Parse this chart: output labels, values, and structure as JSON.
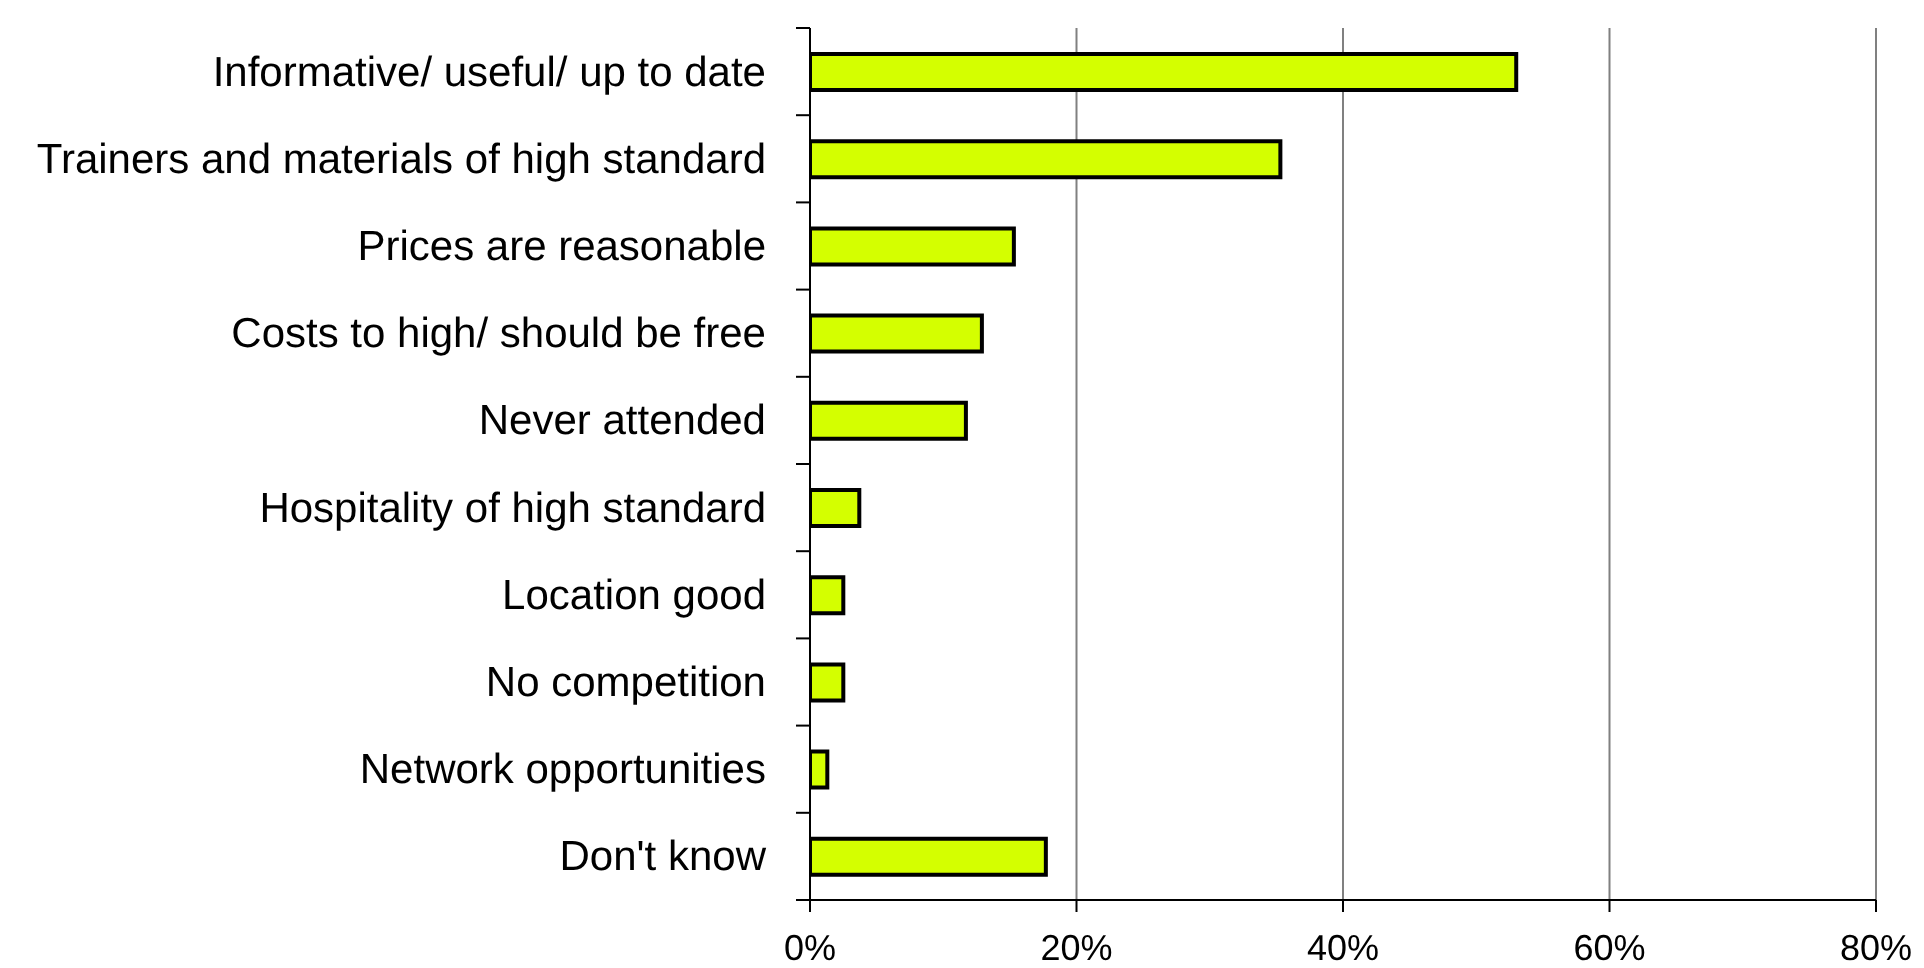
{
  "chart_data": {
    "type": "bar",
    "orientation": "horizontal",
    "categories": [
      "Informative/ useful/ up to date",
      "Trainers and materials of high standard",
      "Prices are reasonable",
      "Costs to high/ should be free",
      "Never attended",
      "Hospitality of high standard",
      "Location good",
      "No competition",
      "Network opportunities",
      "Don't know"
    ],
    "values": [
      53,
      35.3,
      15.3,
      12.9,
      11.7,
      3.7,
      2.5,
      2.5,
      1.3,
      17.7
    ],
    "color": "#d4ff00",
    "xlim": [
      0,
      80
    ],
    "xticks": [
      {
        "value": 0,
        "label": "0%"
      },
      {
        "value": 20,
        "label": "20%"
      },
      {
        "value": 40,
        "label": "40%"
      },
      {
        "value": 60,
        "label": "60%"
      },
      {
        "value": 80,
        "label": "80%"
      }
    ],
    "grid": "x"
  }
}
